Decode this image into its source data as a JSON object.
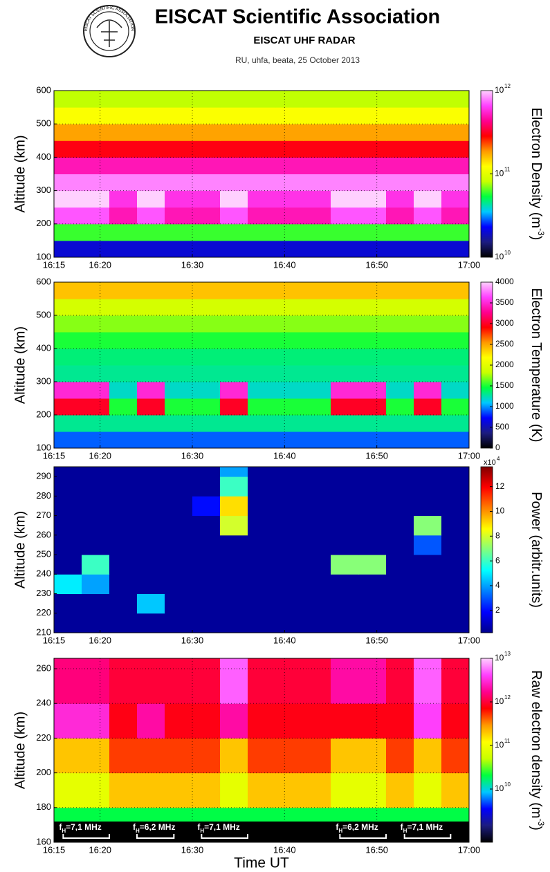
{
  "header": {
    "title": "EISCAT Scientific Association",
    "subtitle": "EISCAT UHF RADAR",
    "info": "RU, uhfa, beata, 25 October 2013",
    "logo_text": "EISCAT SCIENTIFIC ASSOCIATION"
  },
  "chart_data": [
    {
      "type": "heatmap",
      "ylabel": "Altitude (km)",
      "zlabel": {
        "text": "Electron Density (m",
        "sup": "-3",
        "tail": ")"
      },
      "xlim": [
        "16:15",
        "17:00"
      ],
      "xticks": [
        "16:15",
        "16:20",
        "16:30",
        "16:40",
        "16:50",
        "17:00"
      ],
      "ylim": [
        100,
        600
      ],
      "yticks": [
        100,
        200,
        300,
        400,
        500,
        600
      ],
      "grid": true,
      "zlim": [
        10000000000.0,
        1000000000000.0
      ],
      "zlog": true,
      "zticks": [
        {
          "value": 10000000000.0,
          "label": "10",
          "sup": "10"
        },
        {
          "value": 100000000000.0,
          "label": "10",
          "sup": "11"
        },
        {
          "value": 1000000000000.0,
          "label": "10",
          "sup": "12"
        }
      ],
      "colormap": [
        "#000000",
        "#1c1c80",
        "#0000ff",
        "#00c8ff",
        "#00ff40",
        "#c8ff00",
        "#ffff00",
        "#ff9900",
        "#ff0000",
        "#ff0090",
        "#ff40ff",
        "#ffd0ff"
      ],
      "x_bins": [
        "16:15",
        "16:18",
        "16:21",
        "16:24",
        "16:27",
        "16:30",
        "16:33",
        "16:36",
        "16:39",
        "16:42",
        "16:45",
        "16:48",
        "16:51",
        "16:54",
        "16:57",
        "17:00"
      ],
      "y_bins": [
        100,
        150,
        200,
        250,
        300,
        350,
        400,
        450,
        500,
        550,
        600
      ],
      "z": [
        [
          20000000000.0,
          20000000000.0,
          20000000000.0,
          20000000000.0,
          20000000000.0,
          20000000000.0,
          20000000000.0,
          20000000000.0,
          20000000000.0,
          20000000000.0,
          20000000000.0,
          20000000000.0,
          20000000000.0,
          20000000000.0,
          20000000000.0
        ],
        [
          60000000000.0,
          60000000000.0,
          60000000000.0,
          60000000000.0,
          60000000000.0,
          60000000000.0,
          60000000000.0,
          60000000000.0,
          60000000000.0,
          60000000000.0,
          60000000000.0,
          60000000000.0,
          60000000000.0,
          60000000000.0,
          60000000000.0
        ],
        [
          700000000000.0,
          700000000000.0,
          500000000000.0,
          700000000000.0,
          500000000000.0,
          500000000000.0,
          700000000000.0,
          500000000000.0,
          500000000000.0,
          500000000000.0,
          700000000000.0,
          700000000000.0,
          500000000000.0,
          700000000000.0,
          500000000000.0
        ],
        [
          1000000000000.0,
          1000000000000.0,
          600000000000.0,
          1000000000000.0,
          600000000000.0,
          600000000000.0,
          1000000000000.0,
          600000000000.0,
          600000000000.0,
          600000000000.0,
          1000000000000.0,
          1000000000000.0,
          600000000000.0,
          1000000000000.0,
          600000000000.0
        ],
        [
          800000000000.0,
          800000000000.0,
          800000000000.0,
          800000000000.0,
          800000000000.0,
          800000000000.0,
          800000000000.0,
          800000000000.0,
          800000000000.0,
          800000000000.0,
          800000000000.0,
          800000000000.0,
          800000000000.0,
          800000000000.0,
          800000000000.0
        ],
        [
          500000000000.0,
          500000000000.0,
          500000000000.0,
          500000000000.0,
          500000000000.0,
          500000000000.0,
          500000000000.0,
          500000000000.0,
          500000000000.0,
          500000000000.0,
          500000000000.0,
          500000000000.0,
          500000000000.0,
          500000000000.0,
          500000000000.0
        ],
        [
          300000000000.0,
          300000000000.0,
          300000000000.0,
          300000000000.0,
          300000000000.0,
          300000000000.0,
          300000000000.0,
          300000000000.0,
          300000000000.0,
          300000000000.0,
          300000000000.0,
          300000000000.0,
          300000000000.0,
          300000000000.0,
          300000000000.0
        ],
        [
          180000000000.0,
          180000000000.0,
          180000000000.0,
          180000000000.0,
          180000000000.0,
          180000000000.0,
          180000000000.0,
          180000000000.0,
          180000000000.0,
          180000000000.0,
          180000000000.0,
          180000000000.0,
          180000000000.0,
          180000000000.0,
          180000000000.0
        ],
        [
          120000000000.0,
          120000000000.0,
          120000000000.0,
          120000000000.0,
          120000000000.0,
          120000000000.0,
          120000000000.0,
          120000000000.0,
          120000000000.0,
          120000000000.0,
          120000000000.0,
          120000000000.0,
          120000000000.0,
          120000000000.0,
          120000000000.0
        ],
        [
          80000000000.0,
          80000000000.0,
          80000000000.0,
          80000000000.0,
          80000000000.0,
          80000000000.0,
          80000000000.0,
          80000000000.0,
          80000000000.0,
          80000000000.0,
          80000000000.0,
          80000000000.0,
          80000000000.0,
          80000000000.0,
          80000000000.0
        ]
      ]
    },
    {
      "type": "heatmap",
      "ylabel": "Altitude (km)",
      "zlabel": "Electron Temperature (K)",
      "xlim": [
        "16:15",
        "17:00"
      ],
      "xticks": [
        "16:15",
        "16:20",
        "16:30",
        "16:40",
        "16:50",
        "17:00"
      ],
      "ylim": [
        100,
        600
      ],
      "yticks": [
        100,
        200,
        300,
        400,
        500,
        600
      ],
      "grid": true,
      "zlim": [
        0,
        4000
      ],
      "zlog": false,
      "zticks": [
        0,
        500,
        1000,
        1500,
        2000,
        2500,
        3000,
        3500,
        4000
      ],
      "colormap": [
        "#000000",
        "#1c1c80",
        "#0000ff",
        "#00c8ff",
        "#00ff40",
        "#c8ff00",
        "#ffff00",
        "#ff9900",
        "#ff0000",
        "#ff0090",
        "#ff40ff",
        "#ffd0ff"
      ],
      "x_bins": [
        "16:15",
        "16:18",
        "16:21",
        "16:24",
        "16:27",
        "16:30",
        "16:33",
        "16:36",
        "16:39",
        "16:42",
        "16:45",
        "16:48",
        "16:51",
        "16:54",
        "16:57",
        "17:00"
      ],
      "y_bins": [
        100,
        150,
        200,
        250,
        300,
        350,
        400,
        450,
        500,
        550,
        600
      ],
      "z": [
        [
          900,
          900,
          900,
          900,
          900,
          900,
          900,
          900,
          900,
          900,
          900,
          900,
          900,
          900,
          900
        ],
        [
          1300,
          1300,
          1300,
          1300,
          1300,
          1300,
          1300,
          1300,
          1300,
          1300,
          1300,
          1300,
          1300,
          1300,
          1300
        ],
        [
          3000,
          3000,
          1500,
          3000,
          1500,
          1500,
          3000,
          1500,
          1500,
          1500,
          3000,
          3000,
          1500,
          3000,
          1500
        ],
        [
          3500,
          3500,
          1200,
          3500,
          1200,
          1200,
          3500,
          1200,
          1200,
          1200,
          3500,
          3500,
          1200,
          3500,
          1200
        ],
        [
          1300,
          1300,
          1300,
          1300,
          1300,
          1300,
          1300,
          1300,
          1300,
          1300,
          1300,
          1300,
          1300,
          1300,
          1300
        ],
        [
          1350,
          1350,
          1350,
          1350,
          1350,
          1350,
          1350,
          1350,
          1350,
          1350,
          1350,
          1350,
          1350,
          1350,
          1350
        ],
        [
          1500,
          1500,
          1500,
          1500,
          1500,
          1500,
          1500,
          1500,
          1500,
          1500,
          1500,
          1500,
          1500,
          1500,
          1500
        ],
        [
          1700,
          1700,
          1700,
          1700,
          1700,
          1700,
          1700,
          1700,
          1700,
          1700,
          1700,
          1700,
          1700,
          1700,
          1700
        ],
        [
          1900,
          1900,
          1900,
          1900,
          1900,
          1900,
          1900,
          1900,
          1900,
          1900,
          1900,
          1900,
          1900,
          1900,
          1900
        ],
        [
          2400,
          2400,
          2400,
          2400,
          2400,
          2400,
          2400,
          2400,
          2400,
          2400,
          2400,
          2400,
          2400,
          2400,
          2400
        ]
      ]
    },
    {
      "type": "heatmap",
      "ylabel": "Altitude (km)",
      "zlabel": "Power (arbitr.units)",
      "zunit": {
        "text": "x10",
        "sup": "4"
      },
      "xlim": [
        "16:15",
        "17:00"
      ],
      "xticks": [
        "16:15",
        "16:20",
        "16:30",
        "16:40",
        "16:50",
        "17:00"
      ],
      "ylim": [
        210,
        295
      ],
      "yticks": [
        210,
        220,
        230,
        240,
        250,
        260,
        270,
        280,
        290
      ],
      "grid": false,
      "zlim": [
        0.2,
        13.6
      ],
      "zlog": false,
      "zticks": [
        2,
        4,
        6,
        8,
        10,
        12
      ],
      "colormap": [
        "#00008c",
        "#0000ff",
        "#0080ff",
        "#00ffff",
        "#80ff80",
        "#ffff00",
        "#ff8000",
        "#ff0000",
        "#800000"
      ],
      "x_bins": [
        "16:15",
        "16:18",
        "16:21",
        "16:24",
        "16:27",
        "16:30",
        "16:33",
        "16:36",
        "16:39",
        "16:42",
        "16:45",
        "16:48",
        "16:51",
        "16:54",
        "16:57",
        "17:00"
      ],
      "y_bins": [
        210,
        220,
        230,
        240,
        250,
        260,
        270,
        280,
        290,
        295
      ],
      "z": [
        [
          0.4,
          0.4,
          0.4,
          0.4,
          0.4,
          0.4,
          0.4,
          0.4,
          0.4,
          0.4,
          0.4,
          0.4,
          0.4,
          0.4,
          0.4
        ],
        [
          0.4,
          0.4,
          0.4,
          4.5,
          0.4,
          0.4,
          0.4,
          0.4,
          0.4,
          0.4,
          0.4,
          0.4,
          0.4,
          0.4,
          0.4
        ],
        [
          5,
          4,
          0.4,
          0.4,
          0.4,
          0.4,
          0.4,
          0.4,
          0.4,
          0.4,
          0.4,
          0.4,
          0.4,
          0.4,
          0.4
        ],
        [
          0.4,
          6,
          0.4,
          0.4,
          0.4,
          0.4,
          0.4,
          0.4,
          0.4,
          0.4,
          7,
          7,
          0.4,
          0.4,
          0.4
        ],
        [
          0.4,
          0.4,
          0.4,
          0.4,
          0.4,
          0.4,
          0.4,
          0.4,
          0.4,
          0.4,
          0.4,
          0.4,
          0.4,
          3,
          0.4
        ],
        [
          0.4,
          0.4,
          0.4,
          0.4,
          0.4,
          0.4,
          8,
          0.4,
          0.4,
          0.4,
          0.4,
          0.4,
          0.4,
          7,
          0.4
        ],
        [
          0.4,
          0.4,
          0.4,
          0.4,
          0.4,
          2,
          9,
          0.4,
          0.4,
          0.4,
          0.4,
          0.4,
          0.4,
          0.4,
          0.4
        ],
        [
          0.4,
          0.4,
          0.4,
          0.4,
          0.4,
          0.4,
          6,
          0.4,
          0.4,
          0.4,
          0.4,
          0.4,
          0.4,
          0.4,
          0.4
        ],
        [
          0.4,
          0.4,
          0.4,
          0.4,
          0.4,
          0.4,
          4,
          0.4,
          0.4,
          0.4,
          0.4,
          0.4,
          0.4,
          0.4,
          0.4
        ]
      ]
    },
    {
      "type": "heatmap",
      "ylabel": "Altitude (km)",
      "xlabel": "Time UT",
      "zlabel": {
        "text": "Raw electron density (m",
        "sup": "-3",
        "tail": ")"
      },
      "xlim": [
        "16:15",
        "17:00"
      ],
      "xticks": [
        "16:15",
        "16:20",
        "16:30",
        "16:40",
        "16:50",
        "17:00"
      ],
      "ylim": [
        160,
        266
      ],
      "yticks": [
        160,
        180,
        200,
        220,
        240,
        260
      ],
      "grid": true,
      "zlim": [
        600000000.0,
        10000000000000.0
      ],
      "zlog": true,
      "zticks": [
        {
          "value": 10000000000.0,
          "label": "10",
          "sup": "10"
        },
        {
          "value": 100000000000.0,
          "label": "10",
          "sup": "11"
        },
        {
          "value": 1000000000000.0,
          "label": "10",
          "sup": "12"
        },
        {
          "value": 10000000000000.0,
          "label": "10",
          "sup": "13"
        }
      ],
      "colormap": [
        "#000000",
        "#1c1c80",
        "#0000ff",
        "#00c8ff",
        "#00ff40",
        "#c8ff00",
        "#ffff00",
        "#ff9900",
        "#ff0000",
        "#ff0090",
        "#ff40ff",
        "#ffd0ff"
      ],
      "x_bins": [
        "16:15",
        "16:18",
        "16:21",
        "16:24",
        "16:27",
        "16:30",
        "16:33",
        "16:36",
        "16:39",
        "16:42",
        "16:45",
        "16:48",
        "16:51",
        "16:54",
        "16:57",
        "17:00"
      ],
      "y_bins": [
        160,
        180,
        200,
        220,
        240,
        266
      ],
      "z": [
        [
          20000000000.0,
          20000000000.0,
          20000000000.0,
          20000000000.0,
          20000000000.0,
          20000000000.0,
          20000000000.0,
          20000000000.0,
          20000000000.0,
          20000000000.0,
          20000000000.0,
          20000000000.0,
          20000000000.0,
          20000000000.0,
          20000000000.0
        ],
        [
          80000000000.0,
          80000000000.0,
          200000000000.0,
          200000000000.0,
          200000000000.0,
          200000000000.0,
          80000000000.0,
          200000000000.0,
          200000000000.0,
          200000000000.0,
          80000000000.0,
          80000000000.0,
          200000000000.0,
          80000000000.0,
          200000000000.0
        ],
        [
          200000000000.0,
          200000000000.0,
          500000000000.0,
          500000000000.0,
          500000000000.0,
          500000000000.0,
          200000000000.0,
          500000000000.0,
          500000000000.0,
          500000000000.0,
          200000000000.0,
          200000000000.0,
          500000000000.0,
          200000000000.0,
          500000000000.0
        ],
        [
          3000000000000.0,
          3000000000000.0,
          800000000000.0,
          2000000000000.0,
          800000000000.0,
          800000000000.0,
          2000000000000.0,
          800000000000.0,
          800000000000.0,
          800000000000.0,
          800000000000.0,
          800000000000.0,
          800000000000.0,
          4000000000000.0,
          800000000000.0
        ],
        [
          1500000000000.0,
          1500000000000.0,
          1000000000000.0,
          1000000000000.0,
          1000000000000.0,
          1000000000000.0,
          5000000000000.0,
          1000000000000.0,
          1000000000000.0,
          1000000000000.0,
          2000000000000.0,
          2000000000000.0,
          1000000000000.0,
          5000000000000.0,
          1000000000000.0
        ]
      ],
      "annotations": [
        {
          "parts": [
            "f",
            "H",
            "=7,1 MHz"
          ],
          "span": [
            "16:16",
            "16:21"
          ]
        },
        {
          "parts": [
            "f",
            "H",
            "=6,2 MHz"
          ],
          "span": [
            "16:24",
            "16:28"
          ]
        },
        {
          "parts": [
            "f",
            "H",
            "=7,1 MHz"
          ],
          "span": [
            "16:31",
            "16:36"
          ]
        },
        {
          "parts": [
            "f",
            "H",
            "=6,2 MHz"
          ],
          "span": [
            "16:46",
            "16:51"
          ]
        },
        {
          "parts": [
            "f",
            "H",
            "=7,1 MHz"
          ],
          "span": [
            "16:53",
            "16:58"
          ]
        }
      ]
    }
  ]
}
